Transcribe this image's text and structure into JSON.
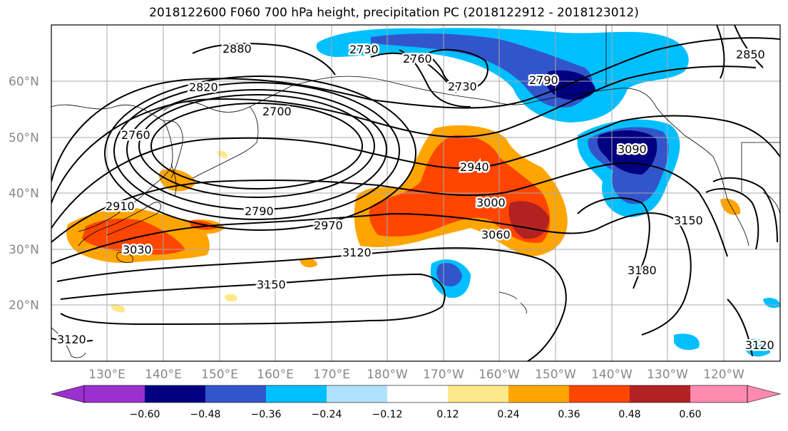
{
  "title": "2018122600 F060 700 hPa height, precipitation PC (2018122912 - 2018123012)",
  "lat_labels": [
    "60°N",
    "50°N",
    "40°N",
    "30°N",
    "20°N"
  ],
  "lon_labels": [
    "130°E",
    "140°E",
    "150°E",
    "160°E",
    "170°E",
    "180°W",
    "170°W",
    "160°W",
    "150°W",
    "140°W",
    "130°W",
    "120°W"
  ],
  "colorbar": {
    "colors": [
      "#9b30d0",
      "#000080",
      "#3355cc",
      "#00bfff",
      "#b0e2ff",
      "#ffffff",
      "#ffe98a",
      "#ffa500",
      "#ff4500",
      "#b22222",
      "#ff8ab0"
    ],
    "tick_labels": [
      "−0.60",
      "−0.48",
      "−0.36",
      "−0.24",
      "−0.12",
      "0.12",
      "0.24",
      "0.36",
      "0.48",
      "0.60"
    ]
  },
  "contour_labels": [
    "2880",
    "2820",
    "2760",
    "2700",
    "2730",
    "2790",
    "2850",
    "2790",
    "2910",
    "3030",
    "2970",
    "3120",
    "3150",
    "2940",
    "3000",
    "3060",
    "3090",
    "3180",
    "3150",
    "3120",
    "3120",
    "2730",
    "2760"
  ]
}
